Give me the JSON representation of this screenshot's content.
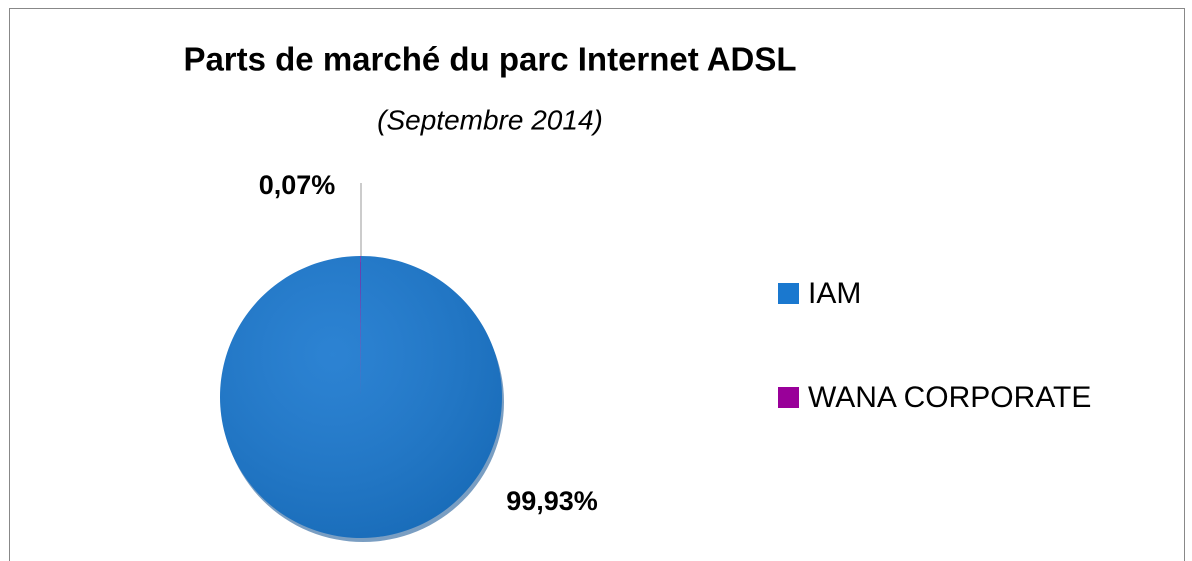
{
  "chart_data": {
    "type": "pie",
    "title": "Parts de marché du parc Internet ADSL",
    "subtitle": "(Septembre 2014)",
    "categories": [
      "IAM",
      "WANA CORPORATE"
    ],
    "values": [
      99.93,
      0.07
    ],
    "value_labels": [
      "99,93%",
      "0,07%"
    ],
    "colors": [
      "#1a78cf",
      "#990099"
    ],
    "legend": "right"
  }
}
